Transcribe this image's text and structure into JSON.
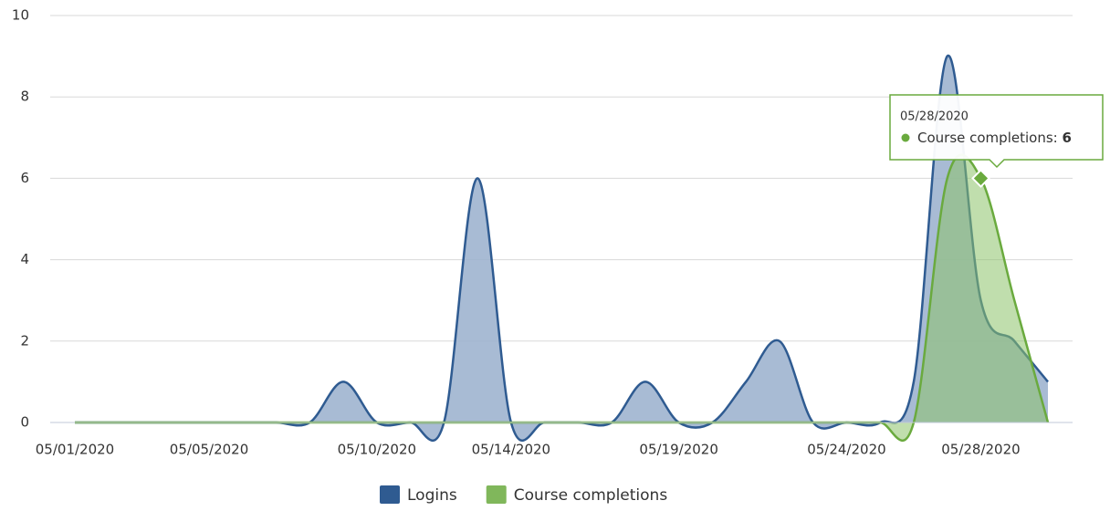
{
  "chart_data": {
    "type": "area",
    "categories": [
      "05/01/2020",
      null,
      null,
      null,
      "05/05/2020",
      null,
      null,
      null,
      null,
      "05/10/2020",
      null,
      null,
      null,
      "05/14/2020",
      null,
      null,
      null,
      null,
      "05/19/2020",
      null,
      null,
      null,
      null,
      "05/24/2020",
      null,
      null,
      null,
      "05/28/2020",
      null,
      null
    ],
    "series": [
      {
        "name": "Logins",
        "color": "#2f5b91",
        "fill": "#9fb4cf",
        "values": [
          0,
          0,
          0,
          0,
          0,
          0,
          0,
          0,
          1,
          0,
          0,
          0,
          6,
          0,
          0,
          0,
          0,
          1,
          0,
          0,
          1,
          2,
          0,
          0,
          0,
          1,
          9,
          3,
          2,
          1
        ]
      },
      {
        "name": "Course completions",
        "color": "#6aaa3e",
        "fill": "#8cc26a",
        "values": [
          0,
          0,
          0,
          0,
          0,
          0,
          0,
          0,
          0,
          0,
          0,
          0,
          0,
          0,
          0,
          0,
          0,
          0,
          0,
          0,
          0,
          0,
          0,
          0,
          0,
          0,
          6,
          6,
          3,
          0
        ]
      }
    ],
    "ylim": [
      0,
      10
    ],
    "yticks": [
      0,
      2,
      4,
      6,
      8,
      10
    ],
    "grid": true,
    "tooltip": {
      "title": "05/28/2020",
      "label": "Course completions:",
      "value": 6
    }
  }
}
